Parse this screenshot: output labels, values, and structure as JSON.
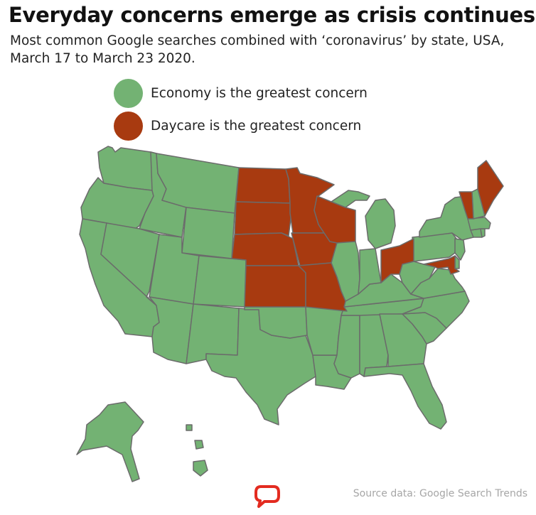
{
  "title": "Everyday concerns emerge as crisis continues",
  "subtitle": "Most common Google searches combined with ‘coronavirus’ by state, USA, March 17 to March 23 2020.",
  "legend": [
    {
      "label": "Economy is the greatest concern",
      "color": "#73b273"
    },
    {
      "label": "Daycare is the greatest concern",
      "color": "#a83a10"
    }
  ],
  "colors": {
    "economy": "#73b273",
    "daycare": "#a83a10",
    "border": "#6b6b6b",
    "logo": "#e32b20"
  },
  "map": {
    "economy_states": [
      "WA",
      "OR",
      "CA",
      "ID",
      "NV",
      "MT",
      "WY",
      "UT",
      "AZ",
      "CO",
      "NM",
      "TX",
      "OK",
      "LA",
      "AR",
      "MS",
      "AL",
      "TN",
      "KY",
      "IL",
      "IN",
      "MI",
      "GA",
      "FL",
      "SC",
      "NC",
      "VA",
      "WV",
      "PA",
      "NY",
      "NJ",
      "CT",
      "RI",
      "MA",
      "NH",
      "DE",
      "AK",
      "HI"
    ],
    "daycare_states": [
      "ND",
      "SD",
      "NE",
      "KS",
      "MN",
      "IA",
      "MO",
      "WI",
      "OH",
      "MD",
      "VT",
      "ME"
    ]
  },
  "source": "Source data: Google Search Trends",
  "logo_icon": "speech-bubble-logo-icon"
}
